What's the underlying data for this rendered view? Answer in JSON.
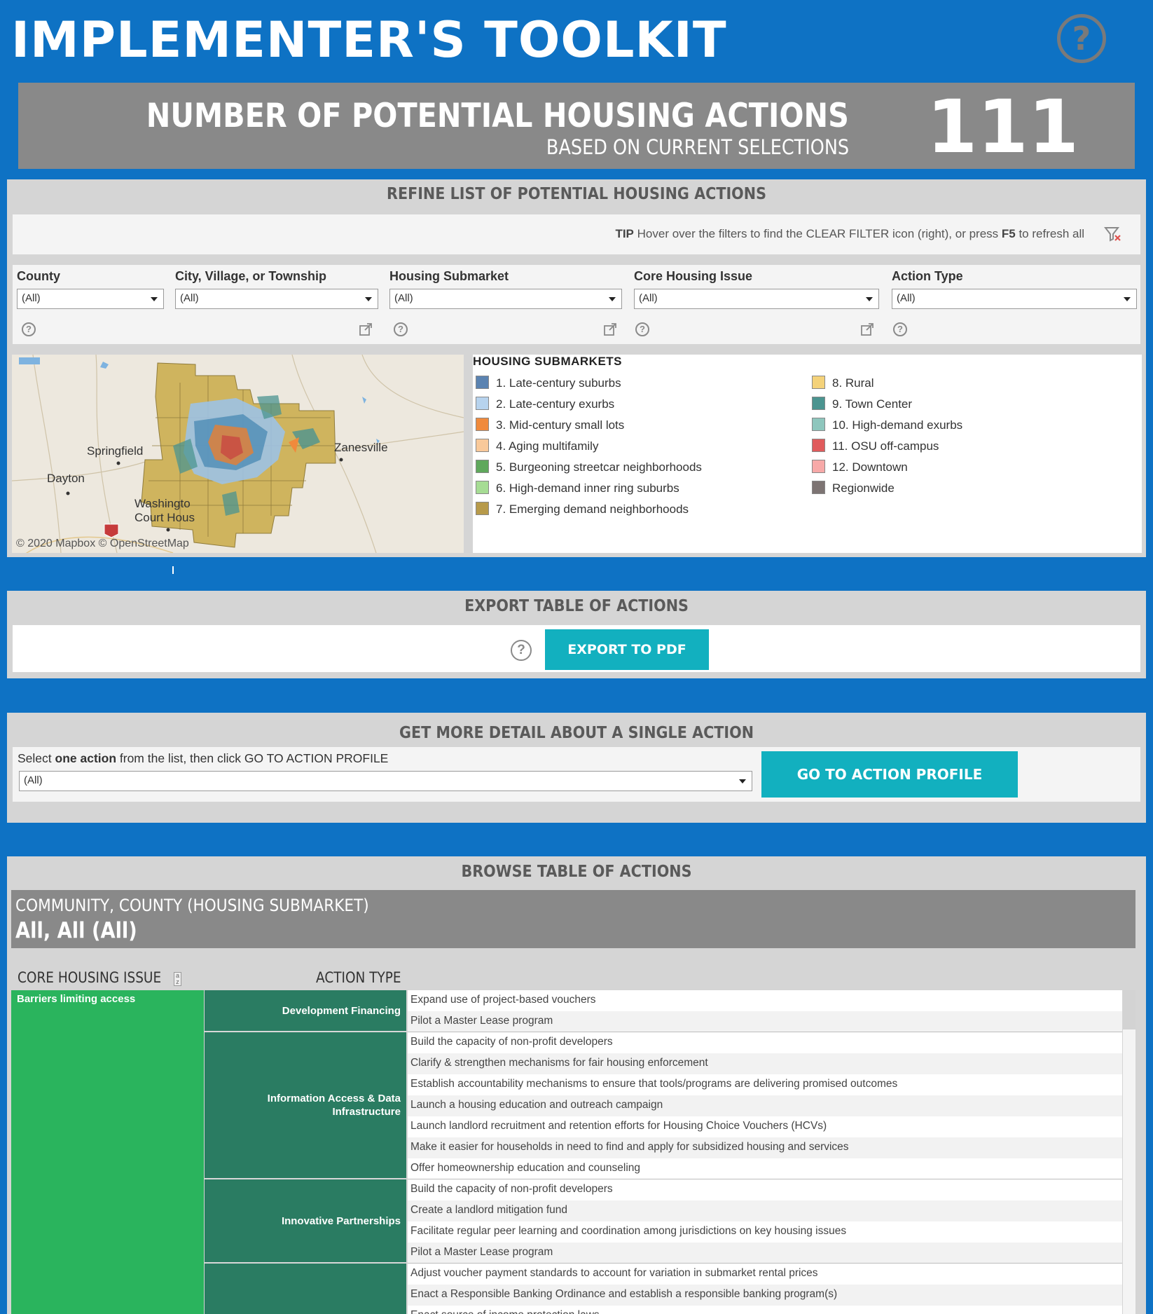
{
  "header": {
    "title": "IMPLEMENTER'S TOOLKIT",
    "help_icon": "question-circle-icon"
  },
  "banner": {
    "line1": "NUMBER OF POTENTIAL HOUSING ACTIONS",
    "line2": "BASED ON CURRENT SELECTIONS",
    "count": "111"
  },
  "refine": {
    "heading": "REFINE LIST OF POTENTIAL HOUSING ACTIONS",
    "tip_label": "TIP",
    "tip_text_1": " Hover over the filters to find the CLEAR FILTER icon (right), or press ",
    "tip_key": "F5",
    "tip_text_2": " to refresh all",
    "filters": [
      {
        "label": "County",
        "value": "(All)"
      },
      {
        "label": "City, Village, or Township",
        "value": "(All)"
      },
      {
        "label": "Housing Submarket",
        "value": "(All)"
      },
      {
        "label": "Core Housing Issue",
        "value": "(All)"
      },
      {
        "label": "Action Type",
        "value": "(All)"
      }
    ]
  },
  "map": {
    "credit": "© 2020 Mapbox © OpenStreetMap",
    "cities": [
      "Springfield",
      "Dayton",
      "Zanesville",
      "Washingto",
      "Court Hous"
    ]
  },
  "legend": {
    "heading": "HOUSING SUBMARKETS",
    "items": [
      {
        "label": "1. Late-century suburbs",
        "color": "#5b83b1"
      },
      {
        "label": "2. Late-century exurbs",
        "color": "#b7d3ee"
      },
      {
        "label": "3. Mid-century small lots",
        "color": "#f08a3c"
      },
      {
        "label": "4. Aging multifamily",
        "color": "#f9c99a"
      },
      {
        "label": "5. Burgeoning streetcar neighborhoods",
        "color": "#5fa85c"
      },
      {
        "label": "6. High-demand inner ring suburbs",
        "color": "#a6dc94"
      },
      {
        "label": "7. Emerging demand neighborhoods",
        "color": "#b79a4a"
      },
      {
        "label": "8. Rural",
        "color": "#f4d27a"
      },
      {
        "label": "9. Town Center",
        "color": "#4b9490"
      },
      {
        "label": "10. High-demand exurbs",
        "color": "#8ec6bd"
      },
      {
        "label": "11. OSU off-campus",
        "color": "#e05b5c"
      },
      {
        "label": "12. Downtown",
        "color": "#f7a9a8"
      },
      {
        "label": "Regionwide",
        "color": "#7d7473"
      }
    ]
  },
  "export": {
    "heading": "EXPORT TABLE OF ACTIONS",
    "button": "EXPORT TO PDF"
  },
  "detail": {
    "heading": "GET MORE DETAIL ABOUT A SINGLE ACTION",
    "instr_1": "Select ",
    "instr_bold": "one action",
    "instr_2": " from the list, then click GO TO ACTION PROFILE",
    "select_value": "(All)",
    "button": "GO TO ACTION PROFILE"
  },
  "browse": {
    "heading": "BROWSE TABLE OF ACTIONS",
    "title_1": "COMMUNITY, COUNTY (HOUSING SUBMARKET)",
    "title_2": "All, All (All)",
    "col_issue": "CORE HOUSING ISSUE",
    "col_type": "ACTION TYPE",
    "issue": "Barriers limiting access",
    "groups": [
      {
        "type": "Development Financing",
        "actions": [
          "Expand use of project-based vouchers",
          "Pilot a Master Lease program"
        ]
      },
      {
        "type": "Information Access & Data Infrastructure",
        "actions": [
          "Build the capacity of non-profit developers",
          "Clarify & strengthen mechanisms for fair housing enforcement",
          "Establish accountability mechanisms to ensure that tools/programs are delivering promised outcomes",
          "Launch a housing education and outreach campaign",
          "Launch landlord recruitment and retention efforts for Housing Choice Vouchers (HCVs)",
          "Make it easier for households in need to find and apply for subsidized housing and services",
          "Offer homeownership education and counseling"
        ]
      },
      {
        "type": "Innovative Partnerships",
        "actions": [
          "Build the capacity of non-profit developers",
          "Create a landlord mitigation fund",
          "Facilitate regular peer learning and coordination among jurisdictions on key housing issues",
          "Pilot a Master Lease program"
        ]
      },
      {
        "type": "",
        "actions": [
          "Adjust voucher payment standards to account for variation in submarket rental prices",
          "Enact a Responsible Banking Ordinance and establish a responsible banking program(s)",
          "Enact source of income protection laws"
        ]
      }
    ]
  }
}
